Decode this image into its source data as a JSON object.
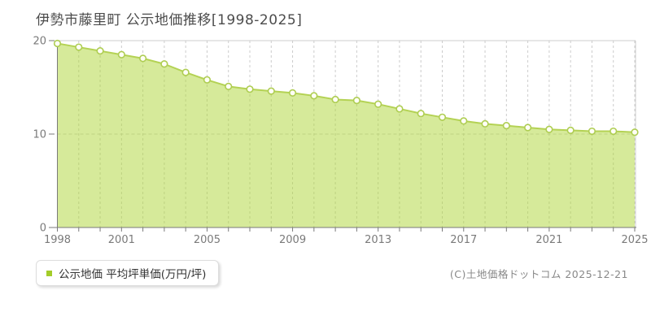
{
  "header": {
    "title": "伊勢市藤里町 公示地価推移[1998-2025]"
  },
  "legend": {
    "label": "公示地価 平均坪単価(万円/坪)"
  },
  "footer": {
    "copyright": "(C)土地価格ドットコム 2025-12-21"
  },
  "colors": {
    "title_text": "#4c4c4c",
    "axis": "#7a7a7a",
    "tick_text": "#7a7a7a",
    "grid": "#cccccc",
    "plot_border": "#cccccc",
    "line": "#b4d254",
    "fill": "#add535",
    "fill_opacity": 0.5,
    "marker_fill": "#fffef6",
    "marker_stroke": "#aecd52",
    "legend_marker": "#a3cc29",
    "legend_text": "#333333",
    "copyright_text": "#888888"
  },
  "chart_data": {
    "type": "area",
    "title": "伊勢市藤里町 公示地価推移[1998-2025]",
    "x": [
      1998,
      1999,
      2000,
      2001,
      2002,
      2003,
      2004,
      2005,
      2006,
      2007,
      2008,
      2009,
      2010,
      2011,
      2012,
      2013,
      2014,
      2015,
      2016,
      2017,
      2018,
      2019,
      2020,
      2021,
      2022,
      2023,
      2024,
      2025
    ],
    "series": [
      {
        "name": "公示地価 平均坪単価(万円/坪)",
        "values": [
          19.7,
          19.3,
          18.9,
          18.5,
          18.1,
          17.5,
          16.6,
          15.8,
          15.1,
          14.8,
          14.6,
          14.4,
          14.1,
          13.7,
          13.6,
          13.2,
          12.7,
          12.2,
          11.8,
          11.4,
          11.1,
          10.9,
          10.7,
          10.5,
          10.4,
          10.3,
          10.3,
          10.2
        ]
      }
    ],
    "ylim": [
      0,
      20
    ],
    "yticks": [
      0,
      10,
      20
    ],
    "xticks_labeled": [
      1998,
      2001,
      2005,
      2009,
      2013,
      2017,
      2021,
      2025
    ],
    "grid": true,
    "legend_position": "bottom-left"
  }
}
